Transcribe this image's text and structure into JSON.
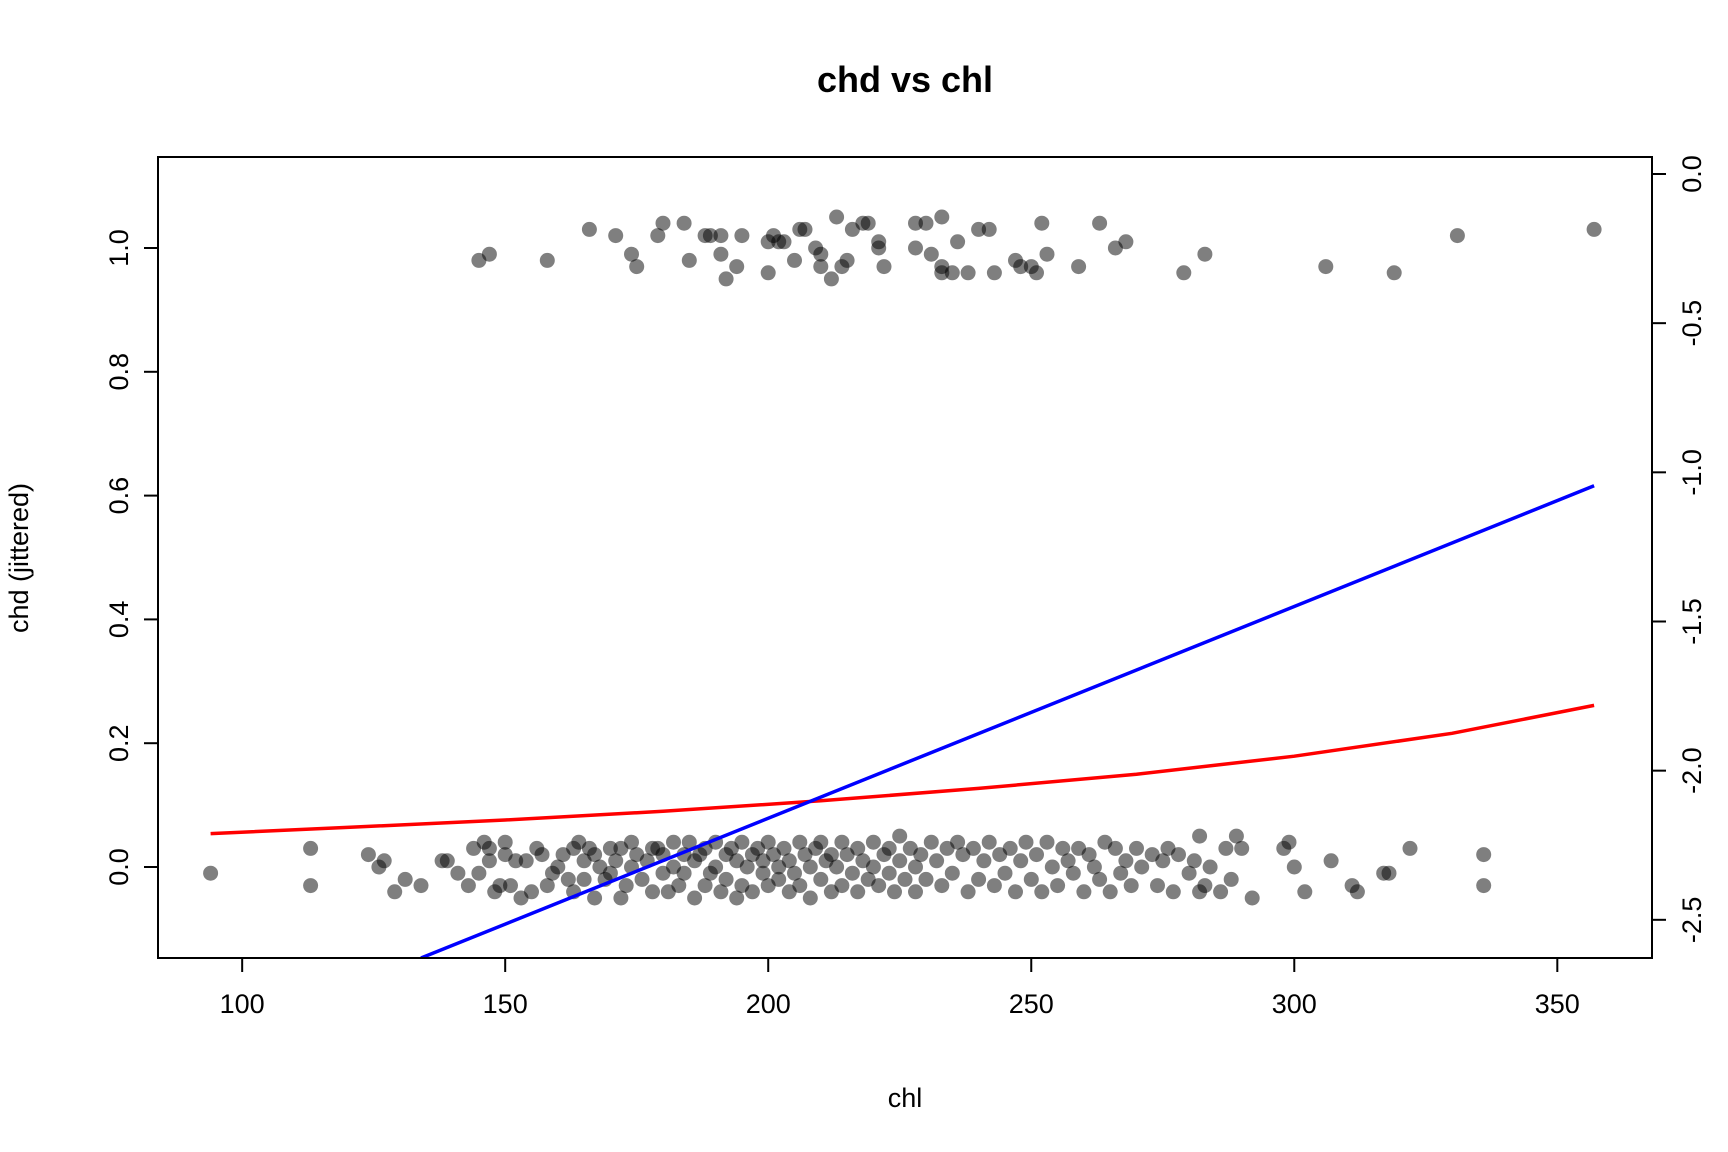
{
  "chart_data": {
    "type": "scatter",
    "title": "chd vs chl",
    "xlabel": "chl",
    "ylabel": "chd (jittered)",
    "y2label": "",
    "xlim": [
      84,
      368
    ],
    "ylim": [
      -0.147,
      1.147
    ],
    "y2lim": [
      -2.628,
      0.057
    ],
    "x_ticks": [
      100,
      150,
      200,
      250,
      300,
      350
    ],
    "x_tick_labels": [
      "100",
      "150",
      "200",
      "250",
      "300",
      "350"
    ],
    "y_ticks": [
      0.0,
      0.2,
      0.4,
      0.6,
      0.8,
      1.0
    ],
    "y_tick_labels": [
      "0.0",
      "0.2",
      "0.4",
      "0.6",
      "0.8",
      "1.0"
    ],
    "y2_ticks": [
      0.0,
      -0.5,
      -1.0,
      -1.5,
      -2.0,
      -2.5
    ],
    "y2_tick_labels": [
      "0.0",
      "-0.5",
      "-1.0",
      "-1.5",
      "-2.0",
      "-2.5"
    ],
    "grid": false,
    "legend": "none",
    "point_color": "#000000",
    "point_opacity": 0.5,
    "points_upper": [
      [
        145,
        0.98
      ],
      [
        147,
        0.99
      ],
      [
        158,
        0.98
      ],
      [
        166,
        1.03
      ],
      [
        171,
        1.02
      ],
      [
        174,
        0.99
      ],
      [
        175,
        0.97
      ],
      [
        179,
        1.02
      ],
      [
        180,
        1.04
      ],
      [
        184,
        1.04
      ],
      [
        185,
        0.98
      ],
      [
        188,
        1.02
      ],
      [
        189,
        1.02
      ],
      [
        191,
        0.99
      ],
      [
        191,
        1.02
      ],
      [
        192,
        0.95
      ],
      [
        194,
        0.97
      ],
      [
        195,
        1.02
      ],
      [
        200,
        1.01
      ],
      [
        200,
        0.96
      ],
      [
        201,
        1.02
      ],
      [
        202,
        1.01
      ],
      [
        203,
        1.01
      ],
      [
        205,
        0.98
      ],
      [
        206,
        1.03
      ],
      [
        207,
        1.03
      ],
      [
        209,
        1.0
      ],
      [
        210,
        0.99
      ],
      [
        210,
        0.97
      ],
      [
        212,
        0.95
      ],
      [
        213,
        1.05
      ],
      [
        214,
        0.97
      ],
      [
        215,
        0.98
      ],
      [
        216,
        1.03
      ],
      [
        218,
        1.04
      ],
      [
        219,
        1.04
      ],
      [
        221,
        1.01
      ],
      [
        221,
        1.0
      ],
      [
        222,
        0.97
      ],
      [
        228,
        1.04
      ],
      [
        228,
        1.0
      ],
      [
        230,
        1.04
      ],
      [
        231,
        0.99
      ],
      [
        233,
        1.05
      ],
      [
        233,
        0.96
      ],
      [
        233,
        0.97
      ],
      [
        235,
        0.96
      ],
      [
        236,
        1.01
      ],
      [
        238,
        0.96
      ],
      [
        240,
        1.03
      ],
      [
        242,
        1.03
      ],
      [
        243,
        0.96
      ],
      [
        247,
        0.98
      ],
      [
        248,
        0.97
      ],
      [
        250,
        0.97
      ],
      [
        251,
        0.96
      ],
      [
        252,
        1.04
      ],
      [
        253,
        0.99
      ],
      [
        259,
        0.97
      ],
      [
        263,
        1.04
      ],
      [
        266,
        1.0
      ],
      [
        268,
        1.01
      ],
      [
        279,
        0.96
      ],
      [
        283,
        0.99
      ],
      [
        306,
        0.97
      ],
      [
        319,
        0.96
      ],
      [
        331,
        1.02
      ],
      [
        357,
        1.03
      ]
    ],
    "points_lower": [
      [
        94,
        -0.01
      ],
      [
        113,
        0.03
      ],
      [
        113,
        -0.03
      ],
      [
        124,
        0.02
      ],
      [
        126,
        0.0
      ],
      [
        127,
        0.01
      ],
      [
        129,
        -0.04
      ],
      [
        131,
        -0.02
      ],
      [
        134,
        -0.03
      ],
      [
        138,
        0.01
      ],
      [
        139,
        0.01
      ],
      [
        141,
        -0.01
      ],
      [
        143,
        -0.03
      ],
      [
        144,
        0.03
      ],
      [
        145,
        -0.01
      ],
      [
        146,
        0.04
      ],
      [
        147,
        0.01
      ],
      [
        147,
        0.03
      ],
      [
        148,
        -0.04
      ],
      [
        149,
        -0.03
      ],
      [
        150,
        0.02
      ],
      [
        150,
        0.04
      ],
      [
        151,
        -0.03
      ],
      [
        152,
        0.01
      ],
      [
        153,
        -0.05
      ],
      [
        154,
        0.01
      ],
      [
        155,
        -0.04
      ],
      [
        156,
        0.03
      ],
      [
        157,
        0.02
      ],
      [
        158,
        -0.03
      ],
      [
        159,
        -0.01
      ],
      [
        160,
        0.0
      ],
      [
        161,
        0.02
      ],
      [
        162,
        -0.02
      ],
      [
        163,
        0.03
      ],
      [
        163,
        -0.04
      ],
      [
        164,
        0.04
      ],
      [
        165,
        0.01
      ],
      [
        165,
        -0.02
      ],
      [
        166,
        0.03
      ],
      [
        167,
        -0.05
      ],
      [
        167,
        0.02
      ],
      [
        168,
        0.0
      ],
      [
        169,
        -0.02
      ],
      [
        170,
        0.03
      ],
      [
        170,
        -0.01
      ],
      [
        171,
        0.01
      ],
      [
        172,
        -0.05
      ],
      [
        172,
        0.03
      ],
      [
        173,
        -0.03
      ],
      [
        174,
        0.0
      ],
      [
        174,
        0.04
      ],
      [
        175,
        0.02
      ],
      [
        176,
        -0.02
      ],
      [
        177,
        0.01
      ],
      [
        178,
        0.03
      ],
      [
        178,
        -0.04
      ],
      [
        179,
        0.03
      ],
      [
        180,
        -0.01
      ],
      [
        180,
        0.02
      ],
      [
        181,
        -0.04
      ],
      [
        182,
        0.04
      ],
      [
        182,
        0.0
      ],
      [
        183,
        -0.03
      ],
      [
        184,
        0.02
      ],
      [
        184,
        -0.01
      ],
      [
        185,
        0.04
      ],
      [
        186,
        -0.05
      ],
      [
        186,
        0.01
      ],
      [
        187,
        0.02
      ],
      [
        188,
        -0.03
      ],
      [
        188,
        0.03
      ],
      [
        189,
        -0.01
      ],
      [
        190,
        0.04
      ],
      [
        190,
        0.0
      ],
      [
        191,
        -0.04
      ],
      [
        192,
        0.02
      ],
      [
        192,
        -0.02
      ],
      [
        193,
        0.03
      ],
      [
        194,
        -0.05
      ],
      [
        194,
        0.01
      ],
      [
        195,
        0.04
      ],
      [
        195,
        -0.03
      ],
      [
        196,
        0.0
      ],
      [
        197,
        0.02
      ],
      [
        197,
        -0.04
      ],
      [
        198,
        0.03
      ],
      [
        199,
        -0.01
      ],
      [
        199,
        0.01
      ],
      [
        200,
        -0.03
      ],
      [
        200,
        0.04
      ],
      [
        201,
        0.02
      ],
      [
        202,
        -0.02
      ],
      [
        202,
        0.0
      ],
      [
        203,
        0.03
      ],
      [
        204,
        -0.04
      ],
      [
        204,
        0.01
      ],
      [
        205,
        -0.01
      ],
      [
        206,
        0.04
      ],
      [
        206,
        -0.03
      ],
      [
        207,
        0.02
      ],
      [
        208,
        0.0
      ],
      [
        208,
        -0.05
      ],
      [
        209,
        0.03
      ],
      [
        210,
        -0.02
      ],
      [
        210,
        0.04
      ],
      [
        211,
        0.01
      ],
      [
        212,
        -0.04
      ],
      [
        212,
        0.02
      ],
      [
        213,
        0.0
      ],
      [
        214,
        -0.03
      ],
      [
        214,
        0.04
      ],
      [
        215,
        0.02
      ],
      [
        216,
        -0.01
      ],
      [
        217,
        0.03
      ],
      [
        217,
        -0.04
      ],
      [
        218,
        0.01
      ],
      [
        219,
        -0.02
      ],
      [
        220,
        0.04
      ],
      [
        220,
        0.0
      ],
      [
        221,
        -0.03
      ],
      [
        222,
        0.02
      ],
      [
        223,
        -0.01
      ],
      [
        223,
        0.03
      ],
      [
        224,
        -0.04
      ],
      [
        225,
        0.05
      ],
      [
        225,
        0.01
      ],
      [
        226,
        -0.02
      ],
      [
        227,
        0.03
      ],
      [
        228,
        0.0
      ],
      [
        228,
        -0.04
      ],
      [
        229,
        0.02
      ],
      [
        230,
        -0.02
      ],
      [
        231,
        0.04
      ],
      [
        232,
        0.01
      ],
      [
        233,
        -0.03
      ],
      [
        234,
        0.03
      ],
      [
        235,
        -0.01
      ],
      [
        236,
        0.04
      ],
      [
        237,
        0.02
      ],
      [
        238,
        -0.04
      ],
      [
        239,
        0.03
      ],
      [
        240,
        -0.02
      ],
      [
        241,
        0.01
      ],
      [
        242,
        0.04
      ],
      [
        243,
        -0.03
      ],
      [
        244,
        0.02
      ],
      [
        245,
        -0.01
      ],
      [
        246,
        0.03
      ],
      [
        247,
        -0.04
      ],
      [
        248,
        0.01
      ],
      [
        249,
        0.04
      ],
      [
        250,
        -0.02
      ],
      [
        251,
        0.02
      ],
      [
        252,
        -0.04
      ],
      [
        253,
        0.04
      ],
      [
        254,
        0.0
      ],
      [
        255,
        -0.03
      ],
      [
        256,
        0.03
      ],
      [
        257,
        0.01
      ],
      [
        258,
        -0.01
      ],
      [
        259,
        0.03
      ],
      [
        260,
        -0.04
      ],
      [
        261,
        0.02
      ],
      [
        262,
        0.0
      ],
      [
        263,
        -0.02
      ],
      [
        264,
        0.04
      ],
      [
        265,
        -0.04
      ],
      [
        266,
        0.03
      ],
      [
        267,
        -0.01
      ],
      [
        268,
        0.01
      ],
      [
        269,
        -0.03
      ],
      [
        270,
        0.03
      ],
      [
        271,
        0.0
      ],
      [
        273,
        0.02
      ],
      [
        274,
        -0.03
      ],
      [
        275,
        0.01
      ],
      [
        276,
        0.03
      ],
      [
        277,
        -0.04
      ],
      [
        278,
        0.02
      ],
      [
        280,
        -0.01
      ],
      [
        281,
        0.01
      ],
      [
        282,
        0.05
      ],
      [
        282,
        -0.04
      ],
      [
        283,
        -0.03
      ],
      [
        284,
        0.0
      ],
      [
        286,
        -0.04
      ],
      [
        287,
        0.03
      ],
      [
        288,
        -0.02
      ],
      [
        289,
        0.05
      ],
      [
        290,
        0.03
      ],
      [
        292,
        -0.05
      ],
      [
        298,
        0.03
      ],
      [
        299,
        0.04
      ],
      [
        300,
        0.0
      ],
      [
        302,
        -0.04
      ],
      [
        307,
        0.01
      ],
      [
        311,
        -0.03
      ],
      [
        312,
        -0.04
      ],
      [
        317,
        -0.01
      ],
      [
        318,
        -0.01
      ],
      [
        322,
        0.03
      ],
      [
        336,
        0.02
      ],
      [
        336,
        -0.03
      ]
    ],
    "series": [
      {
        "color": "#ff0000",
        "axis": "left",
        "x": [
          94,
          120,
          150,
          180,
          210,
          240,
          270,
          300,
          330,
          357
        ],
        "y": [
          0.054,
          0.064,
          0.076,
          0.09,
          0.107,
          0.127,
          0.15,
          0.179,
          0.216,
          0.261
        ]
      },
      {
        "color": "#0000ff",
        "axis": "right",
        "x": [
          134,
          357
        ],
        "y": [
          -2.628,
          -1.045
        ]
      }
    ]
  }
}
